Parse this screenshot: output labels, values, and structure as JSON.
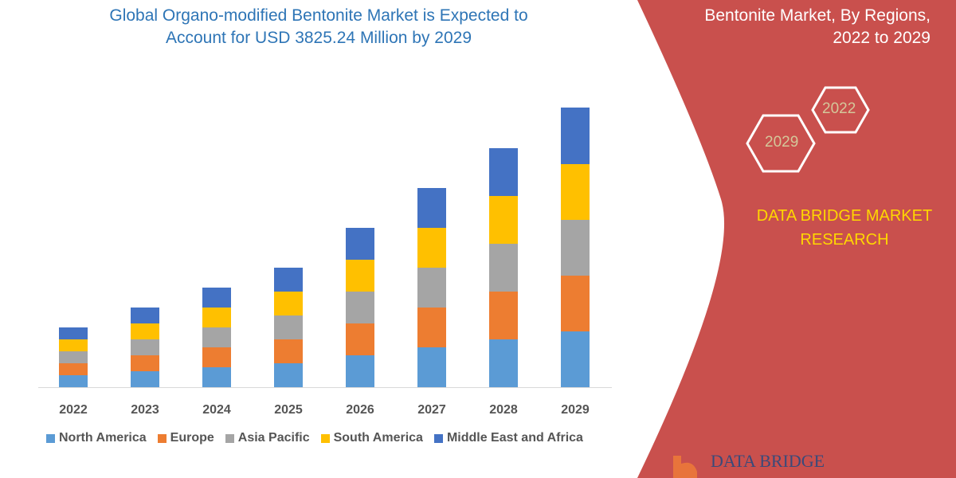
{
  "header": {
    "title_line1": "Global Organo-modified Bentonite Market is Expected to",
    "title_line2": "Account for USD 3825.24 Million by 2029"
  },
  "panel": {
    "title_line1": "Bentonite Market, By Regions,",
    "title_line2": "2022 to 2029",
    "hex_start": "2022",
    "hex_end": "2029",
    "brand_line1": "DATA BRIDGE MARKET",
    "brand_line2": "RESEARCH",
    "logo_text": "DATA BRIDGE",
    "color": "#c9504d"
  },
  "chart_data": {
    "type": "bar",
    "stacked": true,
    "title": "",
    "xlabel": "",
    "ylabel": "",
    "grid": false,
    "legend": "bottom",
    "categories": [
      "2022",
      "2023",
      "2024",
      "2025",
      "2026",
      "2027",
      "2028",
      "2029"
    ],
    "series": [
      {
        "name": "North America",
        "color": "#5b9bd5",
        "values": [
          15,
          20,
          25,
          30,
          40,
          50,
          60,
          70
        ]
      },
      {
        "name": "Europe",
        "color": "#ed7d31",
        "values": [
          15,
          20,
          25,
          30,
          40,
          50,
          60,
          70
        ]
      },
      {
        "name": "Asia Pacific",
        "color": "#a5a5a5",
        "values": [
          15,
          20,
          25,
          30,
          40,
          50,
          60,
          70
        ]
      },
      {
        "name": "South America",
        "color": "#ffc000",
        "values": [
          15,
          20,
          25,
          30,
          40,
          50,
          60,
          70
        ]
      },
      {
        "name": "Middle East and Africa",
        "color": "#4472c4",
        "values": [
          15,
          20,
          25,
          30,
          40,
          50,
          60,
          71
        ]
      }
    ]
  }
}
